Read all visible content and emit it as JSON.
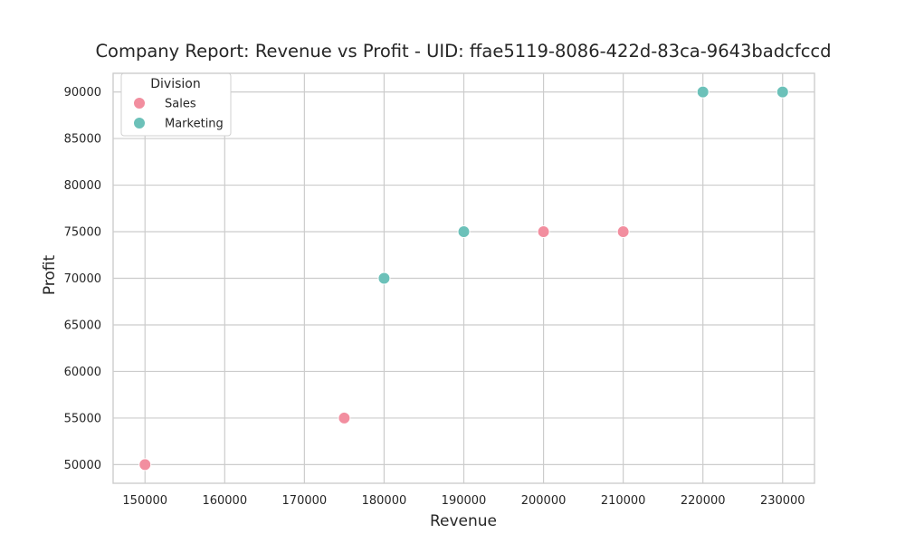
{
  "chart_data": {
    "type": "scatter",
    "title": "Company Report: Revenue vs Profit - UID: ffae5119-8086-422d-83ca-9643badcfccd",
    "xlabel": "Revenue",
    "ylabel": "Profit",
    "xlim": [
      146000,
      234000
    ],
    "ylim": [
      48000,
      92000
    ],
    "x_ticks": [
      150000,
      160000,
      170000,
      180000,
      190000,
      200000,
      210000,
      220000,
      230000
    ],
    "y_ticks": [
      50000,
      55000,
      60000,
      65000,
      70000,
      75000,
      80000,
      85000,
      90000
    ],
    "grid": true,
    "legend": {
      "title": "Division",
      "placement": "top-left"
    },
    "series": [
      {
        "name": "Sales",
        "color": "#f28e9f",
        "points": [
          {
            "x": 150000,
            "y": 50000
          },
          {
            "x": 175000,
            "y": 55000
          },
          {
            "x": 200000,
            "y": 75000
          },
          {
            "x": 210000,
            "y": 75000
          }
        ]
      },
      {
        "name": "Marketing",
        "color": "#6cc1b9",
        "points": [
          {
            "x": 180000,
            "y": 70000
          },
          {
            "x": 190000,
            "y": 75000
          },
          {
            "x": 220000,
            "y": 90000
          },
          {
            "x": 230000,
            "y": 90000
          }
        ]
      }
    ]
  }
}
